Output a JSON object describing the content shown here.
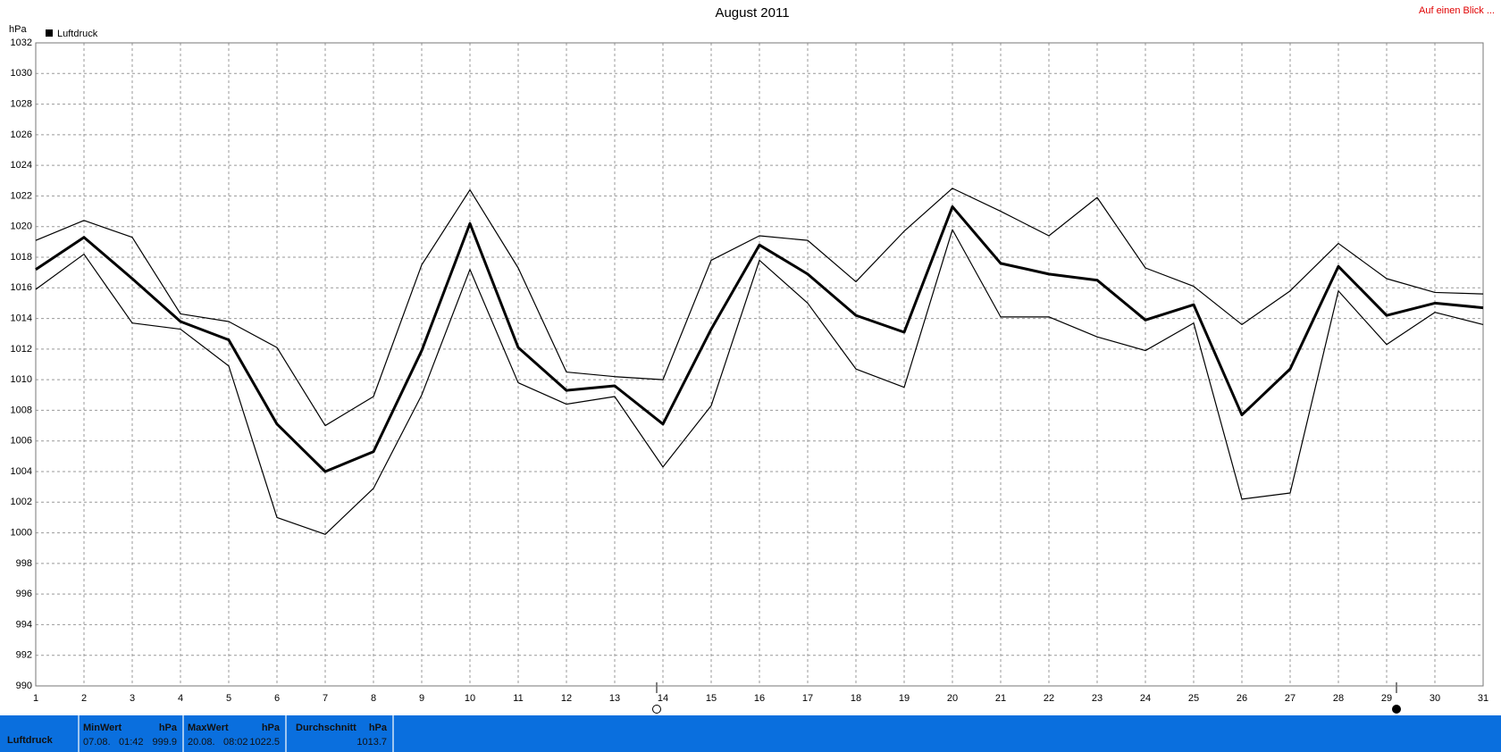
{
  "chart_data": {
    "type": "line",
    "title": "August 2011",
    "ylabel": "hPa",
    "legend": "Luftdruck",
    "link": "Auf einen Blick ...",
    "x": [
      1,
      2,
      3,
      4,
      5,
      6,
      7,
      8,
      9,
      10,
      11,
      12,
      13,
      14,
      15,
      16,
      17,
      18,
      19,
      20,
      21,
      22,
      23,
      24,
      25,
      26,
      27,
      28,
      29,
      30,
      31
    ],
    "xlim": [
      1,
      31
    ],
    "xticks": [
      1,
      2,
      3,
      4,
      5,
      6,
      7,
      8,
      9,
      10,
      11,
      12,
      13,
      14,
      15,
      16,
      17,
      18,
      19,
      20,
      21,
      22,
      23,
      24,
      25,
      26,
      27,
      28,
      29,
      30,
      31
    ],
    "ylim": [
      990,
      1032
    ],
    "yticks": [
      990,
      992,
      994,
      996,
      998,
      1000,
      1002,
      1004,
      1006,
      1008,
      1010,
      1012,
      1014,
      1016,
      1018,
      1020,
      1022,
      1024,
      1026,
      1028,
      1030,
      1032
    ],
    "grid": true,
    "legend_position": "top-left",
    "series": [
      {
        "color": "#000000",
        "width": 1.2,
        "values": [
          1019.1,
          1020.4,
          1019.3,
          1014.3,
          1013.8,
          1012.1,
          1007.0,
          1008.9,
          1017.5,
          1022.4,
          1017.3,
          1010.5,
          1010.2,
          1010.0,
          1017.8,
          1019.4,
          1019.1,
          1016.4,
          1019.7,
          1022.5,
          1021.0,
          1019.4,
          1021.9,
          1017.3,
          1016.1,
          1013.6,
          1015.8,
          1018.9,
          1016.6,
          1015.7,
          1015.6
        ]
      },
      {
        "color": "#000000",
        "width": 3,
        "values": [
          1017.2,
          1019.3,
          1016.6,
          1013.8,
          1012.6,
          1007.1,
          1004.0,
          1005.3,
          1011.9,
          1020.2,
          1012.1,
          1009.3,
          1009.6,
          1007.1,
          1013.3,
          1018.8,
          1016.9,
          1014.2,
          1013.1,
          1021.3,
          1017.6,
          1016.9,
          1016.5,
          1013.9,
          1014.9,
          1007.7,
          1010.7,
          1017.4,
          1014.2,
          1015.0,
          1014.7
        ]
      },
      {
        "color": "#000000",
        "width": 1.2,
        "values": [
          1015.9,
          1018.2,
          1013.7,
          1013.3,
          1010.9,
          1001.0,
          999.9,
          1002.9,
          1009.0,
          1017.2,
          1009.8,
          1008.4,
          1008.9,
          1004.3,
          1008.3,
          1017.8,
          1015.0,
          1010.7,
          1009.5,
          1019.8,
          1014.1,
          1014.1,
          1012.8,
          1011.9,
          1013.7,
          1002.2,
          1002.6,
          1015.8,
          1012.3,
          1014.4,
          1013.6
        ]
      }
    ]
  },
  "summary": {
    "row_label": "Luftdruck",
    "columns": [
      {
        "header": "MinWert",
        "unit": "hPa",
        "date": "07.08.",
        "time": "01:42",
        "value": 999.9
      },
      {
        "header": "MaxWert",
        "unit": "hPa",
        "date": "20.08.",
        "time": "08:02",
        "value": 1022.5
      },
      {
        "header": "Durchschnitt",
        "unit": "hPa",
        "value": 1013.7
      }
    ]
  }
}
